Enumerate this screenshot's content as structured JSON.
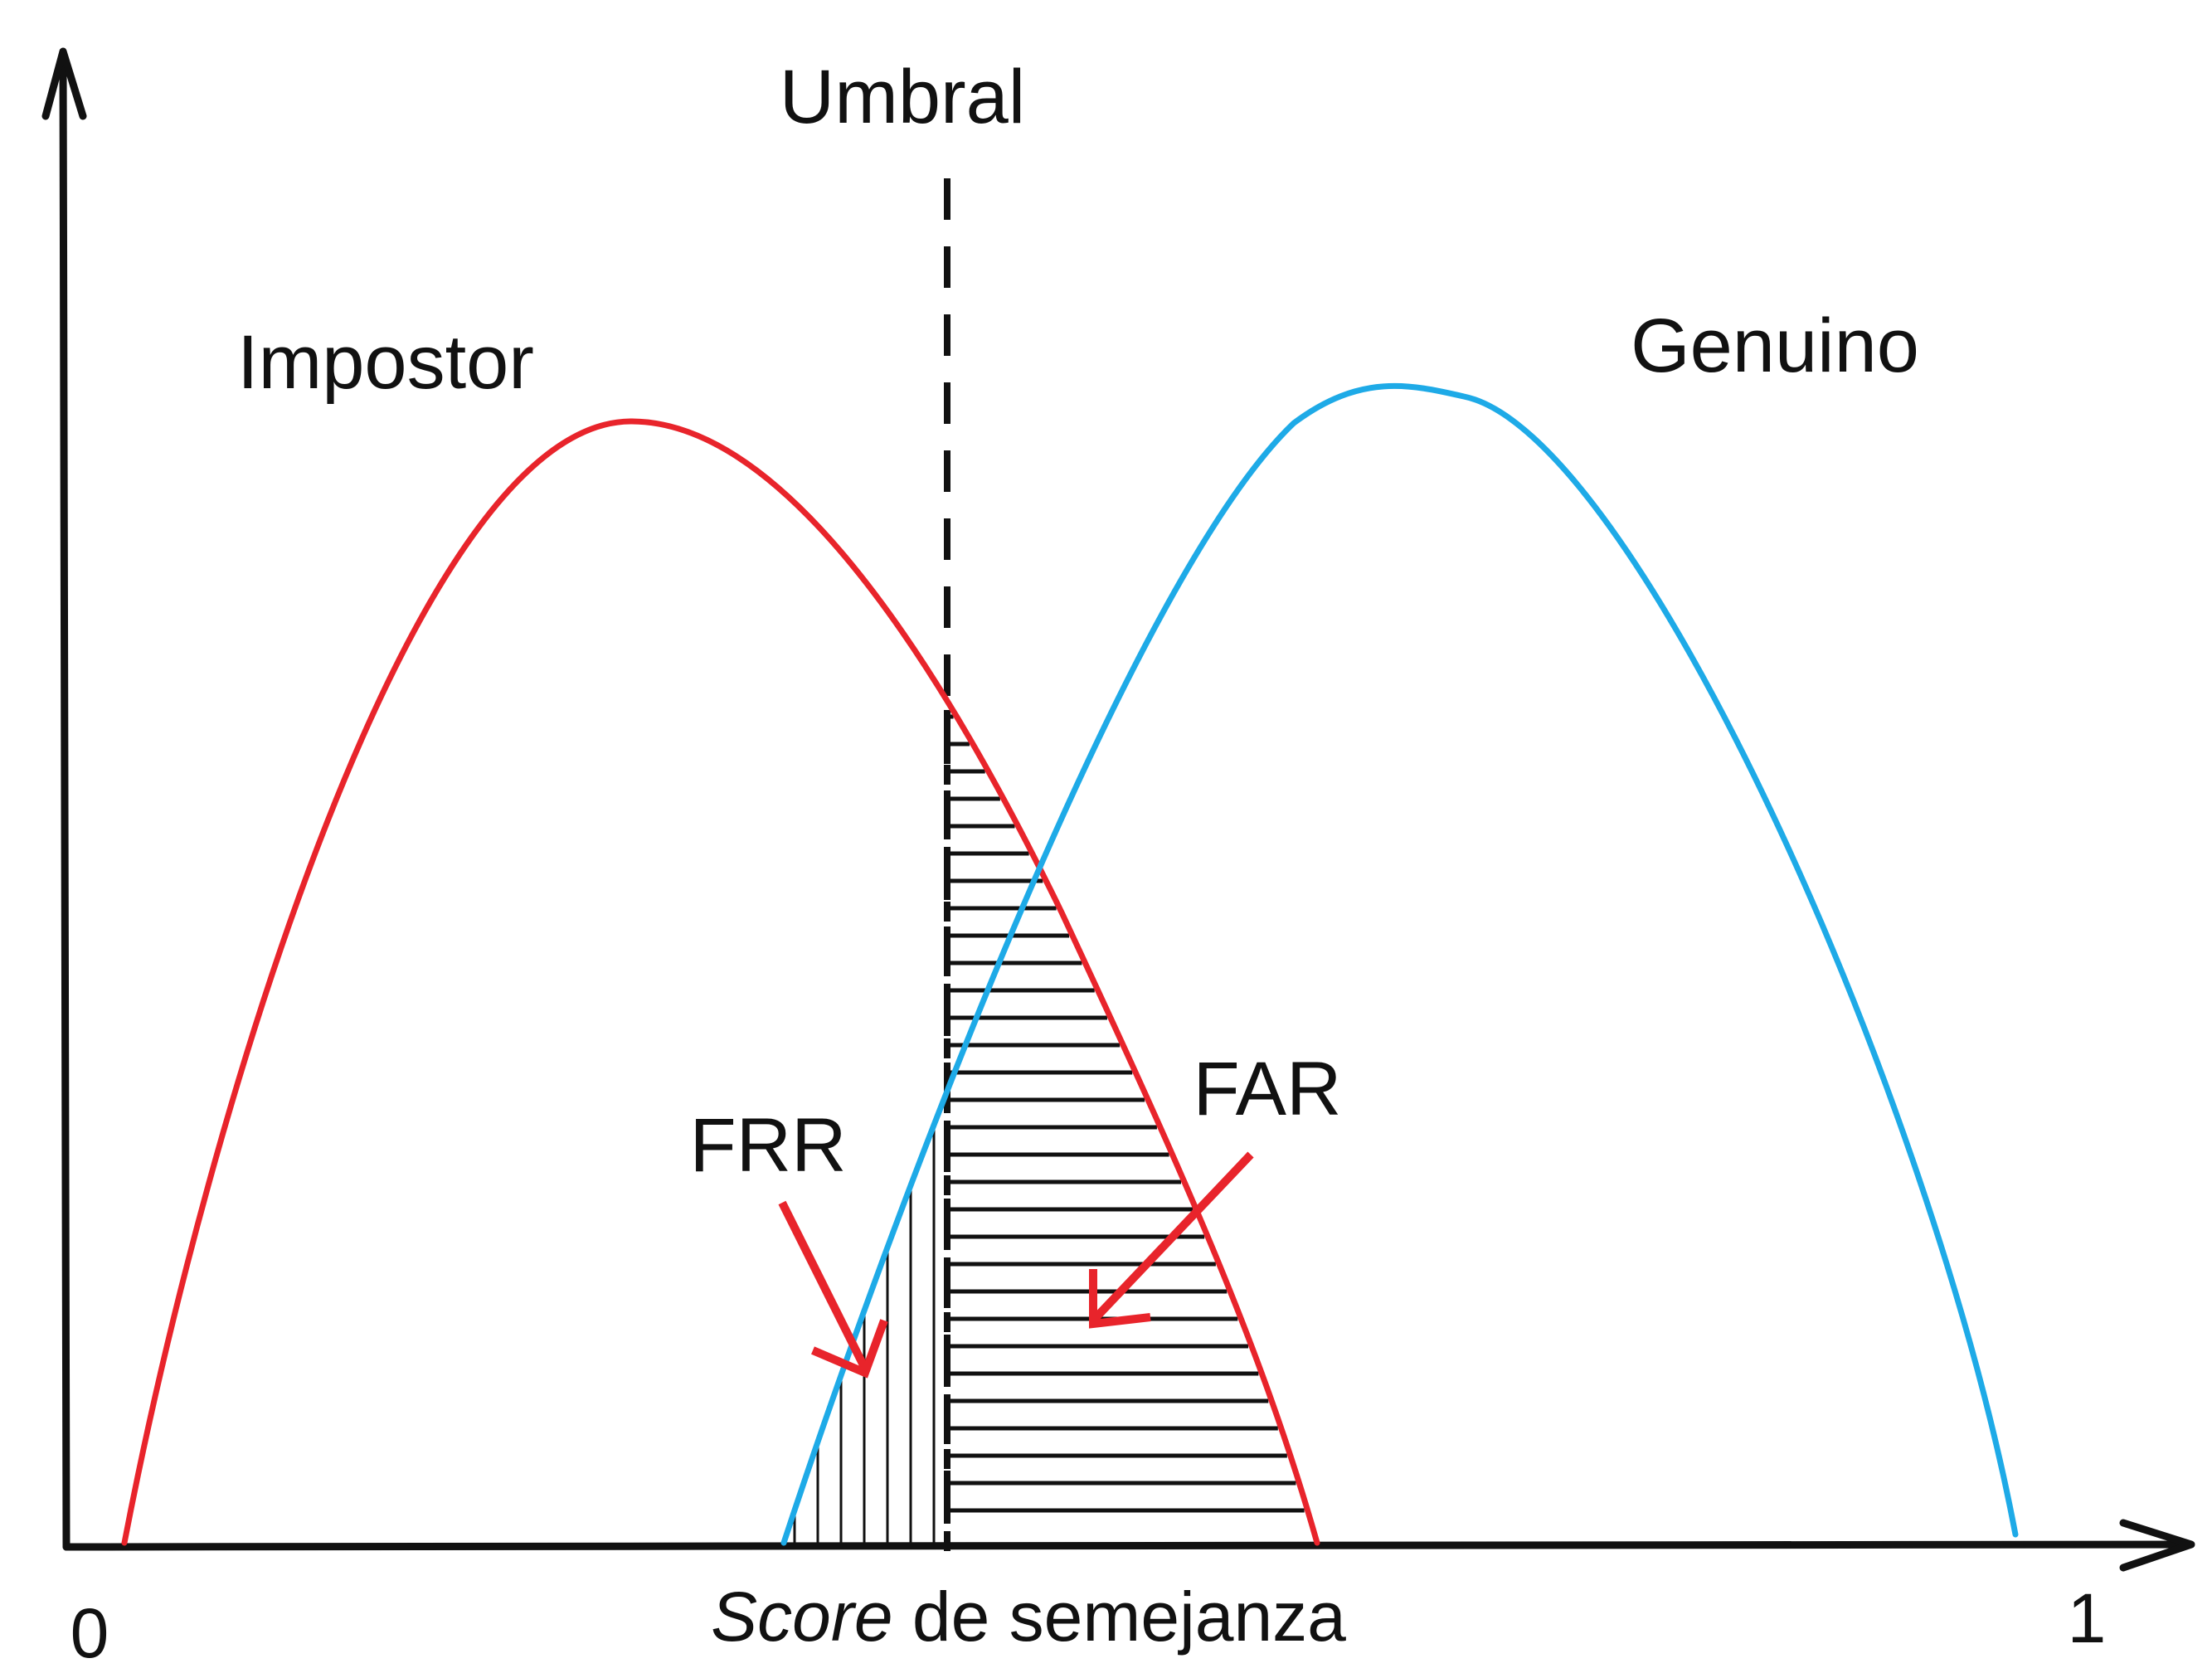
{
  "labels": {
    "threshold": "Umbral",
    "impostor": "Impostor",
    "genuine": "Genuino",
    "frr": "FRR",
    "far": "FAR",
    "x_axis_italic": "Score",
    "x_axis_rest": " de semejanza",
    "x_min": "0",
    "x_max": "1"
  },
  "colors": {
    "impostor_curve": "#e8242b",
    "genuine_curve": "#1eaae7",
    "arrow": "#e8242b",
    "axis": "#111111",
    "hatch": "#111111"
  }
}
